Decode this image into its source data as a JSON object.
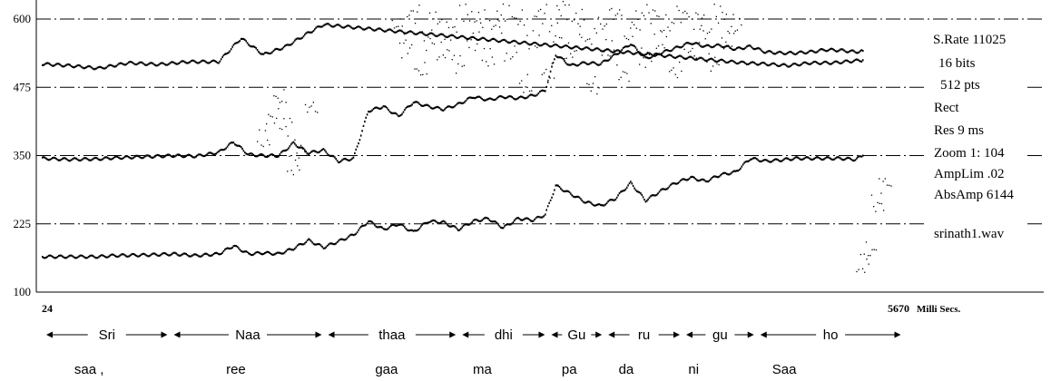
{
  "chart_data": {
    "type": "scatter",
    "title": "",
    "xlabel": "Milli Secs.",
    "ylabel": "",
    "xlim": [
      24,
      5670
    ],
    "ylim": [
      100,
      625
    ],
    "grid": "dash-dot horizontal at y ticks",
    "x_tick_labels": [
      "24",
      "5670"
    ],
    "x_unit": "Milli Secs.",
    "y_ticks": [
      100,
      225,
      350,
      475,
      600
    ],
    "y_tick_labels": [
      "100",
      "225",
      "350",
      "475",
      "600"
    ],
    "annotations": [
      "S.Rate 11025",
      "16 bits",
      "512 pts",
      "Rect",
      "Res 9 ms",
      "Zoom 1: 104",
      "AmpLim .02",
      "AbsAmp 6144",
      "srinath1.wav"
    ],
    "segments": [
      {
        "label": "Sri",
        "x_start": 24,
        "x_end": 875
      },
      {
        "label": "Naa",
        "x_start": 875,
        "x_end": 1905
      },
      {
        "label": "thaa",
        "x_start": 1905,
        "x_end": 2800
      },
      {
        "label": "dhi",
        "x_start": 2800,
        "x_end": 3395
      },
      {
        "label": "Gu",
        "x_start": 3395,
        "x_end": 3775
      },
      {
        "label": "ru",
        "x_start": 3775,
        "x_end": 4295
      },
      {
        "label": "gu",
        "x_start": 4295,
        "x_end": 4790
      },
      {
        "label": "ho",
        "x_start": 4790,
        "x_end": 5770
      }
    ],
    "syllables": [
      {
        "label": "saa ,",
        "x": 340
      },
      {
        "label": "ree",
        "x": 1320
      },
      {
        "label": "gaa",
        "x": 2325
      },
      {
        "label": "ma",
        "x": 2965
      },
      {
        "label": "pa",
        "x": 3545
      },
      {
        "label": "da",
        "x": 3925
      },
      {
        "label": "ni",
        "x": 4375
      },
      {
        "label": "Saa",
        "x": 4980
      }
    ],
    "series": [
      {
        "style": "dense",
        "x": [
          24,
          200,
          400,
          500,
          700,
          900,
          1050,
          1200,
          1300,
          1400,
          1500,
          1600,
          1700,
          1800,
          1900,
          2000,
          2100,
          2200,
          2300,
          2400,
          2500,
          2600,
          2700,
          2800,
          2900,
          3000,
          3100,
          3200,
          3300,
          3380,
          3450,
          3550,
          3650,
          3750,
          3850,
          3950,
          4050,
          4150,
          4250,
          4350,
          4450,
          4550,
          4650,
          4750,
          4850,
          4950,
          5050,
          5150,
          5250,
          5350,
          5450,
          5500
        ],
        "y": [
          165,
          165,
          165,
          167,
          168,
          170,
          167,
          170,
          185,
          170,
          172,
          170,
          180,
          195,
          182,
          193,
          205,
          230,
          215,
          225,
          210,
          230,
          228,
          215,
          230,
          235,
          218,
          235,
          232,
          242,
          295,
          280,
          265,
          258,
          272,
          300,
          268,
          285,
          300,
          310,
          303,
          315,
          320,
          345,
          340,
          342,
          345,
          345,
          345,
          345,
          343,
          350
        ]
      },
      {
        "style": "dense",
        "x": [
          24,
          200,
          400,
          500,
          700,
          900,
          1050,
          1200,
          1300,
          1400,
          1500,
          1600,
          1700,
          1800,
          1900,
          2000,
          2100,
          2200,
          2300,
          2400,
          2500,
          2600,
          2700,
          2800,
          2900,
          3000,
          3100,
          3200,
          3300,
          3380,
          3450,
          3550,
          3650,
          3750,
          3850,
          3950,
          4050,
          4150,
          4250,
          4350,
          4450,
          4550,
          4650,
          4750,
          4850,
          4950,
          5050,
          5150,
          5250,
          5350,
          5450,
          5500
        ],
        "y": [
          345,
          343,
          344,
          346,
          348,
          350,
          349,
          356,
          375,
          352,
          350,
          350,
          373,
          355,
          360,
          340,
          345,
          432,
          440,
          422,
          448,
          440,
          435,
          444,
          458,
          452,
          458,
          455,
          460,
          470,
          535,
          515,
          520,
          518,
          535,
          555,
          528,
          538,
          547,
          557,
          550,
          552,
          545,
          550,
          540,
          538,
          538,
          540,
          544,
          543,
          540,
          542
        ]
      },
      {
        "style": "dense",
        "x": [
          24,
          200,
          400,
          600,
          800,
          1000,
          1200,
          1350,
          1500,
          1650,
          1800,
          1900,
          4700,
          4850,
          5000,
          5150,
          5300,
          5500
        ],
        "y": [
          518,
          515,
          510,
          520,
          517,
          522,
          522,
          565,
          535,
          550,
          575,
          590,
          520,
          518,
          515,
          520,
          520,
          525
        ]
      },
      {
        "style": "sparse",
        "x": [
          1500,
          1560,
          1610,
          1650,
          1700,
          1750,
          1820,
          2400,
          2450,
          2500,
          2550,
          2600,
          2650,
          2700,
          2750,
          2800,
          2850,
          2900,
          2950,
          3000,
          3050,
          3100,
          3150,
          3200,
          3250,
          3300,
          3350,
          3400,
          3450,
          3500,
          3550,
          3600,
          3650,
          3700,
          3750,
          3800,
          3850,
          3900,
          3950,
          4000,
          4050,
          4100,
          4150,
          4200,
          4250,
          4300,
          4350,
          4400,
          4450,
          4500,
          4550,
          4600,
          4650,
          5500,
          5550,
          5600,
          5650
        ],
        "y": [
          380,
          420,
          455,
          405,
          330,
          360,
          440,
          590,
          550,
          610,
          505,
          560,
          600,
          540,
          580,
          520,
          610,
          560,
          600,
          530,
          590,
          610,
          540,
          600,
          480,
          560,
          610,
          500,
          575,
          620,
          540,
          600,
          560,
          480,
          590,
          545,
          610,
          500,
          570,
          600,
          530,
          610,
          560,
          590,
          505,
          610,
          540,
          600,
          575,
          520,
          610,
          560,
          590,
          150,
          175,
          260,
          300
        ]
      }
    ]
  }
}
